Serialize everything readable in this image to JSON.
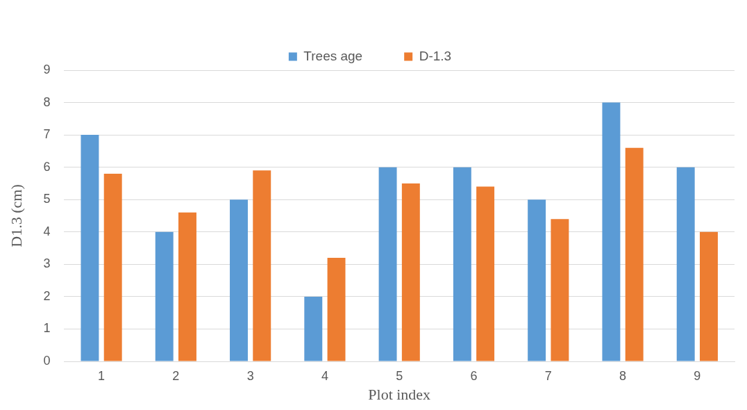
{
  "chart_data": {
    "type": "bar",
    "xlabel": "Plot index",
    "ylabel": "D1.3 (cm)",
    "categories": [
      "1",
      "2",
      "3",
      "4",
      "5",
      "6",
      "7",
      "8",
      "9"
    ],
    "series": [
      {
        "name": "Trees age",
        "color": "#5b9bd5",
        "values": [
          7,
          4,
          5,
          2,
          6,
          6,
          5,
          8,
          6
        ]
      },
      {
        "name": "D-1.3",
        "color": "#ed7d31",
        "values": [
          5.8,
          4.6,
          5.9,
          3.2,
          5.5,
          5.4,
          4.4,
          6.6,
          4.0
        ]
      }
    ],
    "ylim": [
      0,
      9
    ],
    "yticks": [
      0,
      1,
      2,
      3,
      4,
      5,
      6,
      7,
      8,
      9
    ],
    "grid": "y",
    "legend": "top"
  }
}
